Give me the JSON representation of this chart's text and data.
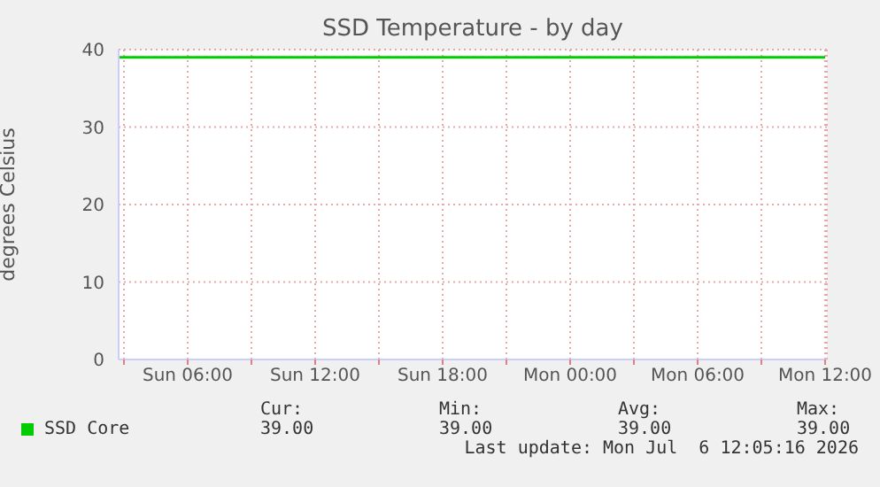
{
  "chart_data": {
    "type": "line",
    "title": "SSD Temperature - by day",
    "ylabel": "degrees Celsius",
    "xlim": [
      "2026-07-05T02:45",
      "2026-07-06T12:05"
    ],
    "xticks": [
      {
        "value": "2026-07-05T03:00",
        "label": null
      },
      {
        "value": "2026-07-05T06:00",
        "label": "Sun 06:00"
      },
      {
        "value": "2026-07-05T09:00",
        "label": null
      },
      {
        "value": "2026-07-05T12:00",
        "label": "Sun 12:00"
      },
      {
        "value": "2026-07-05T15:00",
        "label": null
      },
      {
        "value": "2026-07-05T18:00",
        "label": "Sun 18:00"
      },
      {
        "value": "2026-07-05T21:00",
        "label": null
      },
      {
        "value": "2026-07-06T00:00",
        "label": "Mon 00:00"
      },
      {
        "value": "2026-07-06T03:00",
        "label": null
      },
      {
        "value": "2026-07-06T06:00",
        "label": "Mon 06:00"
      },
      {
        "value": "2026-07-06T09:00",
        "label": null
      },
      {
        "value": "2026-07-06T12:00",
        "label": "Mon 12:00"
      }
    ],
    "ylim": [
      0,
      40
    ],
    "yticks": [
      0,
      10,
      20,
      30,
      40
    ],
    "grid": true,
    "legend": "bottom left",
    "series": [
      {
        "name": "SSD Core",
        "color": "#00cc00",
        "x": [
          "2026-07-05T02:45",
          "2026-07-06T12:00"
        ],
        "values": [
          39,
          39
        ]
      }
    ],
    "annotations": [
      "Cur:",
      "Min:",
      "Avg:",
      "Max:",
      "39.00",
      "39.00",
      "39.00",
      "39.00",
      "Last update: Mon Jul  6 12:05:16 2026"
    ]
  }
}
